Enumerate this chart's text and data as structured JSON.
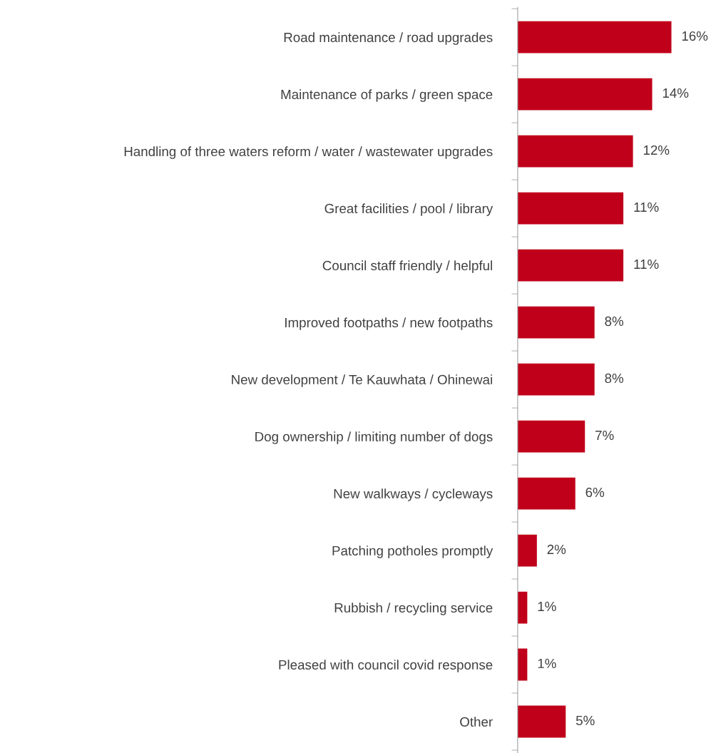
{
  "chart_data": {
    "type": "bar",
    "orientation": "horizontal",
    "data_labels": true,
    "grid": false,
    "legend": false,
    "tick_labels": "y",
    "categories": [
      "Road maintenance / road upgrades",
      "Maintenance of parks / green space",
      "Handling of three waters reform / water / wastewater upgrades",
      "Great facilities / pool / library",
      "Council staff friendly / helpful",
      "Improved footpaths / new footpaths",
      "New development / Te Kauwhata / Ohinewai",
      "Dog ownership / limiting number of dogs",
      "New walkways / cycleways",
      "Patching potholes promptly",
      "Rubbish / recycling service",
      "Pleased with council covid response",
      "Other"
    ],
    "values": [
      16,
      14,
      12,
      11,
      11,
      8,
      8,
      7,
      6,
      2,
      1,
      1,
      5
    ],
    "value_labels": [
      "16%",
      "14%",
      "12%",
      "11%",
      "11%",
      "8%",
      "8%",
      "7%",
      "6%",
      "2%",
      "1%",
      "1%",
      "5%"
    ],
    "color": "#c0001a"
  }
}
